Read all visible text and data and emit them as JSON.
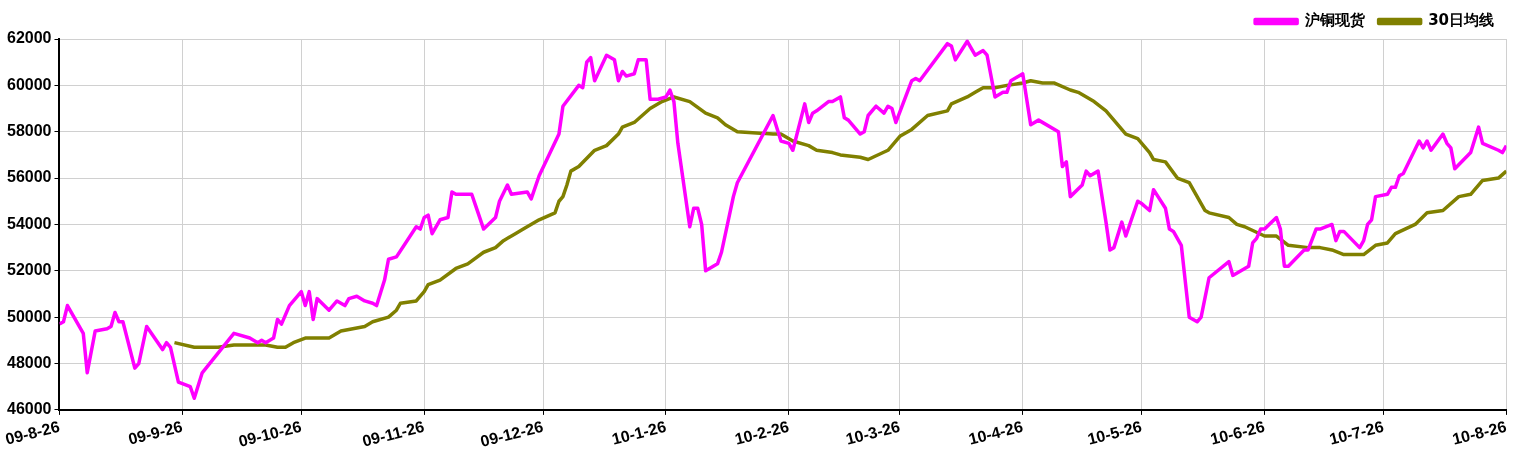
{
  "chart_data": {
    "type": "line",
    "xlim": [
      "2009-08-26",
      "2010-08-26"
    ],
    "xticks": [
      {
        "value": "2009-08-26",
        "label": "09-8-26"
      },
      {
        "value": "2009-09-26",
        "label": "09-9-26"
      },
      {
        "value": "2009-10-26",
        "label": "09-10-26"
      },
      {
        "value": "2009-11-26",
        "label": "09-11-26"
      },
      {
        "value": "2009-12-26",
        "label": "09-12-26"
      },
      {
        "value": "2010-01-26",
        "label": "10-1-26"
      },
      {
        "value": "2010-02-26",
        "label": "10-2-26"
      },
      {
        "value": "2010-03-26",
        "label": "10-3-26"
      },
      {
        "value": "2010-04-26",
        "label": "10-4-26"
      },
      {
        "value": "2010-05-26",
        "label": "10-5-26"
      },
      {
        "value": "2010-06-26",
        "label": "10-6-26"
      },
      {
        "value": "2010-07-26",
        "label": "10-7-26"
      },
      {
        "value": "2010-08-26",
        "label": "10-8-26"
      }
    ],
    "ylim": [
      46000,
      62000
    ],
    "yticks": [
      46000,
      48000,
      50000,
      52000,
      54000,
      56000,
      58000,
      60000,
      62000
    ],
    "grid": true,
    "legend": "top right",
    "marker": "none",
    "line_style": "solid",
    "series": [
      {
        "name": "沪铜现货",
        "color": "#ff00ff",
        "x": [
          "2009-08-26",
          "2009-08-27",
          "2009-08-28",
          "2009-09-01",
          "2009-09-02",
          "2009-09-04",
          "2009-09-07",
          "2009-09-08",
          "2009-09-09",
          "2009-09-10",
          "2009-09-11",
          "2009-09-14",
          "2009-09-15",
          "2009-09-17",
          "2009-09-21",
          "2009-09-22",
          "2009-09-23",
          "2009-09-25",
          "2009-09-28",
          "2009-09-29",
          "2009-10-01",
          "2009-10-09",
          "2009-10-13",
          "2009-10-15",
          "2009-10-16",
          "2009-10-17",
          "2009-10-19",
          "2009-10-20",
          "2009-10-21",
          "2009-10-23",
          "2009-10-26",
          "2009-10-27",
          "2009-10-28",
          "2009-10-29",
          "2009-10-30",
          "2009-11-02",
          "2009-11-04",
          "2009-11-06",
          "2009-11-07",
          "2009-11-09",
          "2009-11-11",
          "2009-11-13",
          "2009-11-14",
          "2009-11-16",
          "2009-11-17",
          "2009-11-19",
          "2009-11-24",
          "2009-11-25",
          "2009-11-26",
          "2009-11-27",
          "2009-11-28",
          "2009-11-30",
          "2009-12-02",
          "2009-12-03",
          "2009-12-04",
          "2009-12-08",
          "2009-12-09",
          "2009-12-11",
          "2009-12-14",
          "2009-12-15",
          "2009-12-17",
          "2009-12-18",
          "2009-12-22",
          "2009-12-23",
          "2009-12-25",
          "2009-12-30",
          "2009-12-31",
          "2010-01-04",
          "2010-01-05",
          "2010-01-06",
          "2010-01-07",
          "2010-01-08",
          "2010-01-11",
          "2010-01-13",
          "2010-01-14",
          "2010-01-15",
          "2010-01-16",
          "2010-01-18",
          "2010-01-19",
          "2010-01-21",
          "2010-01-22",
          "2010-01-24",
          "2010-01-26",
          "2010-01-27",
          "2010-01-28",
          "2010-01-29",
          "2010-02-01",
          "2010-02-02",
          "2010-02-03",
          "2010-02-04",
          "2010-02-05",
          "2010-02-08",
          "2010-02-09",
          "2010-02-12",
          "2010-02-13",
          "2010-02-22",
          "2010-02-24",
          "2010-02-26",
          "2010-02-27",
          "2010-03-02",
          "2010-03-03",
          "2010-03-04",
          "2010-03-05",
          "2010-03-08",
          "2010-03-09",
          "2010-03-11",
          "2010-03-12",
          "2010-03-13",
          "2010-03-16",
          "2010-03-17",
          "2010-03-18",
          "2010-03-20",
          "2010-03-22",
          "2010-03-23",
          "2010-03-24",
          "2010-03-25",
          "2010-03-29",
          "2010-03-30",
          "2010-03-31",
          "2010-04-07",
          "2010-04-08",
          "2010-04-09",
          "2010-04-12",
          "2010-04-14",
          "2010-04-16",
          "2010-04-17",
          "2010-04-19",
          "2010-04-21",
          "2010-04-22",
          "2010-04-23",
          "2010-04-26",
          "2010-04-28",
          "2010-04-30",
          "2010-05-05",
          "2010-05-06",
          "2010-05-07",
          "2010-05-08",
          "2010-05-11",
          "2010-05-12",
          "2010-05-13",
          "2010-05-15",
          "2010-05-17",
          "2010-05-18",
          "2010-05-19",
          "2010-05-21",
          "2010-05-22",
          "2010-05-25",
          "2010-05-26",
          "2010-05-28",
          "2010-05-29",
          "2010-06-01",
          "2010-06-02",
          "2010-06-03",
          "2010-06-05",
          "2010-06-07",
          "2010-06-09",
          "2010-06-10",
          "2010-06-12",
          "2010-06-17",
          "2010-06-18",
          "2010-06-22",
          "2010-06-23",
          "2010-06-24",
          "2010-06-25",
          "2010-06-26",
          "2010-06-29",
          "2010-06-30",
          "2010-07-01",
          "2010-07-02",
          "2010-07-06",
          "2010-07-07",
          "2010-07-09",
          "2010-07-10",
          "2010-07-13",
          "2010-07-14",
          "2010-07-15",
          "2010-07-16",
          "2010-07-20",
          "2010-07-21",
          "2010-07-22",
          "2010-07-23",
          "2010-07-24",
          "2010-07-27",
          "2010-07-28",
          "2010-07-29",
          "2010-07-30",
          "2010-07-31",
          "2010-08-04",
          "2010-08-05",
          "2010-08-06",
          "2010-08-07",
          "2010-08-10",
          "2010-08-11",
          "2010-08-12",
          "2010-08-13",
          "2010-08-17",
          "2010-08-19",
          "2010-08-20",
          "2010-08-24",
          "2010-08-25",
          "2010-08-26"
        ],
        "values": [
          49700,
          49800,
          50500,
          49300,
          47600,
          49400,
          49500,
          49600,
          50200,
          49800,
          49800,
          47800,
          48000,
          49600,
          48600,
          48900,
          48700,
          47200,
          47000,
          46500,
          47600,
          49300,
          49100,
          48900,
          49000,
          48900,
          49100,
          49900,
          49700,
          50500,
          51100,
          50500,
          51100,
          49900,
          50800,
          50300,
          50700,
          50500,
          50800,
          50900,
          50700,
          50600,
          50500,
          51600,
          52500,
          52600,
          53900,
          53800,
          54300,
          54400,
          53600,
          54200,
          54300,
          55400,
          55300,
          55300,
          54800,
          53800,
          54300,
          55000,
          55700,
          55300,
          55400,
          55100,
          56100,
          57900,
          59100,
          60000,
          59900,
          61000,
          61200,
          60200,
          61300,
          61100,
          60200,
          60600,
          60400,
          60500,
          61100,
          61100,
          59400,
          59400,
          59500,
          59800,
          59300,
          57500,
          53900,
          54700,
          54700,
          54000,
          52000,
          52300,
          52800,
          55200,
          55800,
          58700,
          57600,
          57500,
          57200,
          59200,
          58400,
          58800,
          58900,
          59300,
          59300,
          59500,
          58600,
          58500,
          57900,
          58000,
          58700,
          59100,
          58800,
          59100,
          59000,
          58400,
          60200,
          60300,
          60200,
          61800,
          61700,
          61100,
          61900,
          61300,
          61500,
          61300,
          59500,
          59700,
          59700,
          60200,
          60500,
          58300,
          58500,
          58000,
          56500,
          56700,
          55200,
          55700,
          56300,
          56100,
          56300,
          54100,
          52900,
          53000,
          54100,
          53500,
          55000,
          54900,
          54600,
          55500,
          54700,
          53800,
          53700,
          53100,
          50000,
          49800,
          50000,
          51700,
          52400,
          51800,
          52200,
          53200,
          53400,
          53800,
          53800,
          54300,
          53800,
          52200,
          52200,
          52900,
          52900,
          53800,
          53800,
          54000,
          53300,
          53700,
          53700,
          53000,
          53300,
          54000,
          54200,
          55200,
          55300,
          55600,
          55600,
          56100,
          56200,
          57600,
          57300,
          57600,
          57200,
          57900,
          57500,
          57300,
          56400,
          57100,
          58200,
          57500,
          57200,
          57100,
          57400
        ]
      },
      {
        "name": "30日均线",
        "color": "#808000",
        "x": [
          "2009-09-24",
          "2009-09-29",
          "2009-10-01",
          "2009-10-05",
          "2009-10-09",
          "2009-10-12",
          "2009-10-17",
          "2009-10-20",
          "2009-10-22",
          "2009-10-24",
          "2009-10-27",
          "2009-10-29",
          "2009-11-02",
          "2009-11-05",
          "2009-11-08",
          "2009-11-11",
          "2009-11-13",
          "2009-11-17",
          "2009-11-19",
          "2009-11-20",
          "2009-11-24",
          "2009-11-26",
          "2009-11-27",
          "2009-11-30",
          "2009-12-04",
          "2009-12-07",
          "2009-12-11",
          "2009-12-14",
          "2009-12-16",
          "2009-12-19",
          "2009-12-21",
          "2009-12-25",
          "2009-12-29",
          "2009-12-30",
          "2009-12-31",
          "2010-01-01",
          "2010-01-02",
          "2010-01-04",
          "2010-01-08",
          "2010-01-11",
          "2010-01-14",
          "2010-01-15",
          "2010-01-18",
          "2010-01-22",
          "2010-01-25",
          "2010-01-28",
          "2010-02-01",
          "2010-02-05",
          "2010-02-08",
          "2010-02-10",
          "2010-02-13",
          "2010-02-22",
          "2010-02-24",
          "2010-02-27",
          "2010-03-03",
          "2010-03-05",
          "2010-03-09",
          "2010-03-11",
          "2010-03-16",
          "2010-03-18",
          "2010-03-23",
          "2010-03-26",
          "2010-03-29",
          "2010-04-02",
          "2010-04-07",
          "2010-04-08",
          "2010-04-12",
          "2010-04-14",
          "2010-04-16",
          "2010-04-19",
          "2010-04-22",
          "2010-04-26",
          "2010-04-28",
          "2010-05-01",
          "2010-05-04",
          "2010-05-08",
          "2010-05-10",
          "2010-05-14",
          "2010-05-17",
          "2010-05-22",
          "2010-05-25",
          "2010-05-28",
          "2010-05-29",
          "2010-06-01",
          "2010-06-04",
          "2010-06-07",
          "2010-06-11",
          "2010-06-12",
          "2010-06-17",
          "2010-06-19",
          "2010-06-21",
          "2010-06-26",
          "2010-06-29",
          "2010-07-02",
          "2010-07-07",
          "2010-07-10",
          "2010-07-13",
          "2010-07-16",
          "2010-07-21",
          "2010-07-24",
          "2010-07-27",
          "2010-07-29",
          "2010-08-03",
          "2010-08-06",
          "2010-08-10",
          "2010-08-14",
          "2010-08-17",
          "2010-08-20",
          "2010-08-24",
          "2010-08-26"
        ],
        "values": [
          48900,
          48700,
          48700,
          48700,
          48800,
          48800,
          48800,
          48700,
          48700,
          48900,
          49100,
          49100,
          49100,
          49400,
          49500,
          49600,
          49800,
          50000,
          50300,
          50600,
          50700,
          51100,
          51400,
          51600,
          52100,
          52300,
          52800,
          53000,
          53300,
          53600,
          53800,
          54200,
          54500,
          55000,
          55200,
          55700,
          56300,
          56500,
          57200,
          57400,
          57900,
          58200,
          58400,
          59000,
          59300,
          59500,
          59300,
          58800,
          58600,
          58300,
          58000,
          57900,
          57900,
          57600,
          57400,
          57200,
          57100,
          57000,
          56900,
          56800,
          57200,
          57800,
          58100,
          58700,
          58900,
          59200,
          59500,
          59700,
          59900,
          59900,
          60000,
          60100,
          60200,
          60100,
          60100,
          59800,
          59700,
          59300,
          58900,
          57900,
          57700,
          57100,
          56800,
          56700,
          56000,
          55800,
          54600,
          54500,
          54300,
          54000,
          53900,
          53500,
          53500,
          53100,
          53000,
          53000,
          52900,
          52700,
          52700,
          53100,
          53200,
          53600,
          54000,
          54500,
          54600,
          55200,
          55300,
          55900,
          56000,
          56300
        ]
      }
    ]
  }
}
